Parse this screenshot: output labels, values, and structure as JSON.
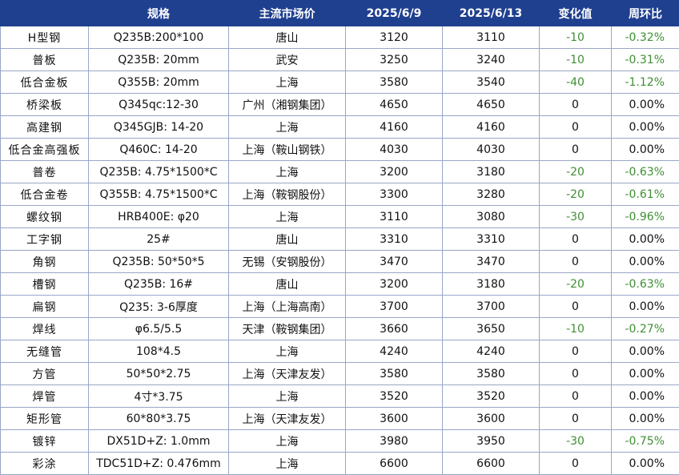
{
  "header": {
    "name": "",
    "spec": "规格",
    "market": "主流市场价",
    "date1": "2025/6/9",
    "date2": "2025/6/13",
    "change": "变化值",
    "ratio": "周环比"
  },
  "colors": {
    "header_bg": "#1f3f8f",
    "negative": "#3f8f33"
  },
  "rows": [
    {
      "name": "H型钢",
      "spec": "Q235B:200*100",
      "market": "唐山",
      "p1": "3120",
      "p2": "3110",
      "change": "-10",
      "ratio": "-0.32%"
    },
    {
      "name": "普板",
      "spec": "Q235B: 20mm",
      "market": "武安",
      "p1": "3250",
      "p2": "3240",
      "change": "-10",
      "ratio": "-0.31%"
    },
    {
      "name": "低合金板",
      "spec": "Q355B: 20mm",
      "market": "上海",
      "p1": "3580",
      "p2": "3540",
      "change": "-40",
      "ratio": "-1.12%"
    },
    {
      "name": "桥梁板",
      "spec": "Q345qc:12-30",
      "market": "广州（湘钢集团）",
      "p1": "4650",
      "p2": "4650",
      "change": "0",
      "ratio": "0.00%"
    },
    {
      "name": "高建钢",
      "spec": "Q345GJB: 14-20",
      "market": "上海",
      "p1": "4160",
      "p2": "4160",
      "change": "0",
      "ratio": "0.00%"
    },
    {
      "name": "低合金高强板",
      "spec": "Q460C: 14-20",
      "market": "上海（鞍山钢铁）",
      "p1": "4030",
      "p2": "4030",
      "change": "0",
      "ratio": "0.00%"
    },
    {
      "name": "普卷",
      "spec": "Q235B: 4.75*1500*C",
      "market": "上海",
      "p1": "3200",
      "p2": "3180",
      "change": "-20",
      "ratio": "-0.63%"
    },
    {
      "name": "低合金卷",
      "spec": "Q355B: 4.75*1500*C",
      "market": "上海（鞍钢股份）",
      "p1": "3300",
      "p2": "3280",
      "change": "-20",
      "ratio": "-0.61%"
    },
    {
      "name": "螺纹钢",
      "spec": "HRB400E: φ20",
      "market": "上海",
      "p1": "3110",
      "p2": "3080",
      "change": "-30",
      "ratio": "-0.96%"
    },
    {
      "name": "工字钢",
      "spec": "25#",
      "market": "唐山",
      "p1": "3310",
      "p2": "3310",
      "change": "0",
      "ratio": "0.00%"
    },
    {
      "name": "角钢",
      "spec": "Q235B: 50*50*5",
      "market": "无锡（安钢股份）",
      "p1": "3470",
      "p2": "3470",
      "change": "0",
      "ratio": "0.00%"
    },
    {
      "name": "槽钢",
      "spec": "Q235B: 16#",
      "market": "唐山",
      "p1": "3200",
      "p2": "3180",
      "change": "-20",
      "ratio": "-0.63%"
    },
    {
      "name": "扁钢",
      "spec": "Q235: 3-6厚度",
      "market": "上海（上海高南）",
      "p1": "3700",
      "p2": "3700",
      "change": "0",
      "ratio": "0.00%"
    },
    {
      "name": "焊线",
      "spec": "φ6.5/5.5",
      "market": "天津（鞍钢集团）",
      "p1": "3660",
      "p2": "3650",
      "change": "-10",
      "ratio": "-0.27%"
    },
    {
      "name": "无缝管",
      "spec": "108*4.5",
      "market": "上海",
      "p1": "4240",
      "p2": "4240",
      "change": "0",
      "ratio": "0.00%"
    },
    {
      "name": "方管",
      "spec": "50*50*2.75",
      "market": "上海（天津友发）",
      "p1": "3580",
      "p2": "3580",
      "change": "0",
      "ratio": "0.00%"
    },
    {
      "name": "焊管",
      "spec": "4寸*3.75",
      "market": "上海",
      "p1": "3520",
      "p2": "3520",
      "change": "0",
      "ratio": "0.00%"
    },
    {
      "name": "矩形管",
      "spec": "60*80*3.75",
      "market": "上海（天津友发）",
      "p1": "3600",
      "p2": "3600",
      "change": "0",
      "ratio": "0.00%"
    },
    {
      "name": "镀锌",
      "spec": "DX51D+Z: 1.0mm",
      "market": "上海",
      "p1": "3980",
      "p2": "3950",
      "change": "-30",
      "ratio": "-0.75%"
    },
    {
      "name": "彩涂",
      "spec": "TDC51D+Z: 0.476mm",
      "market": "上海",
      "p1": "6600",
      "p2": "6600",
      "change": "0",
      "ratio": "0.00%"
    }
  ]
}
